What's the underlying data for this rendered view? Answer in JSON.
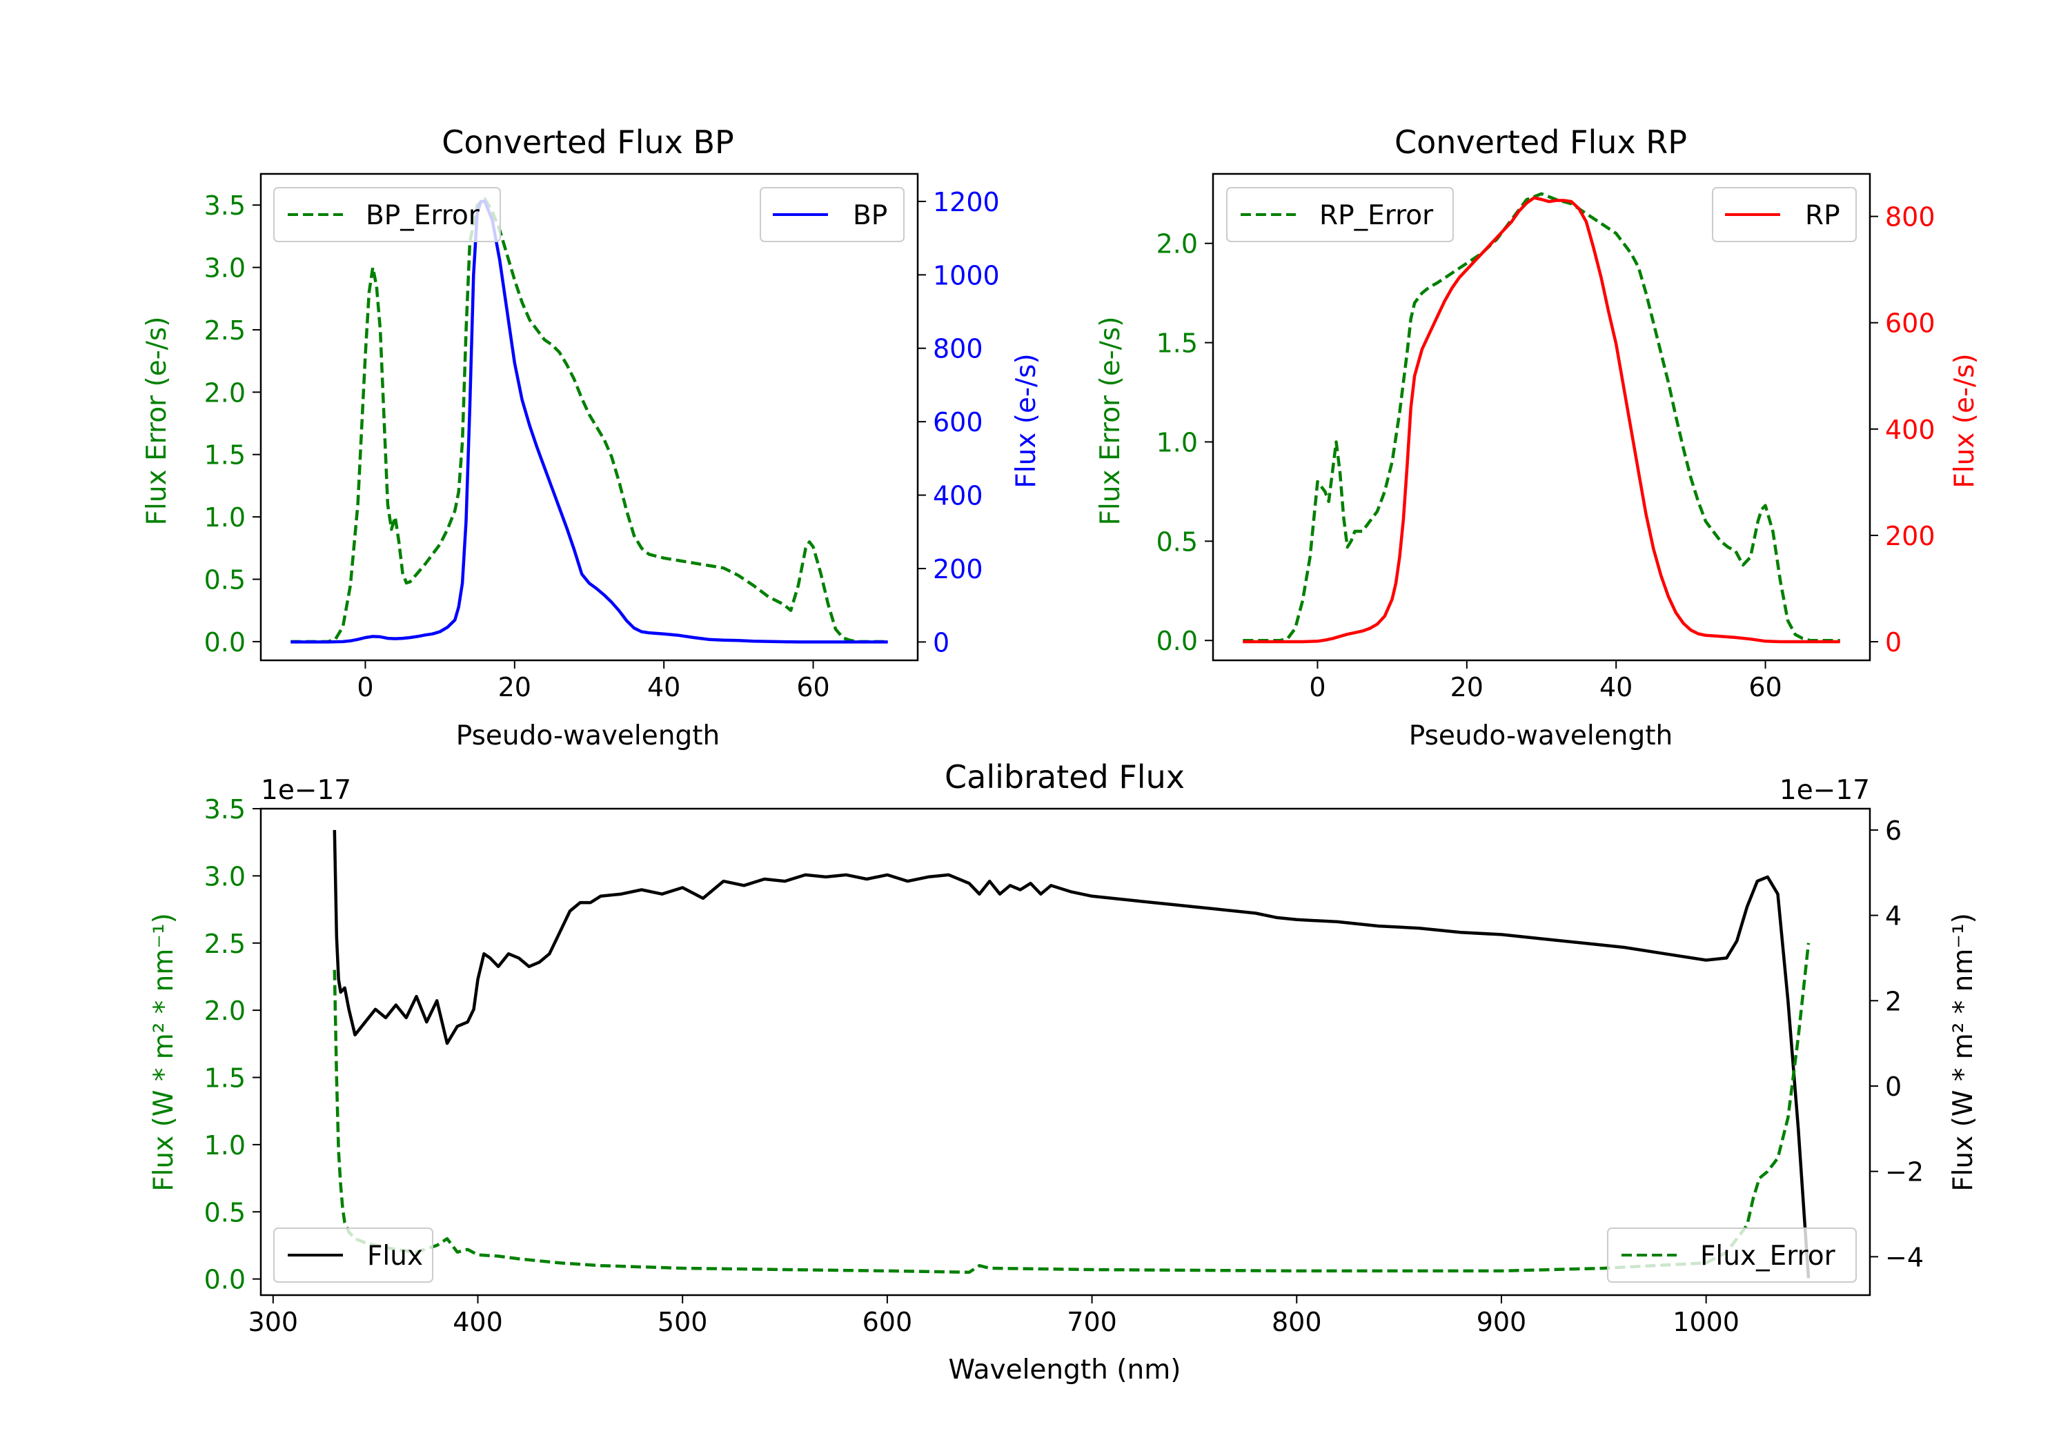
{
  "colors": {
    "bp": "#0000ff",
    "rp": "#ff0000",
    "error": "#008000",
    "flux": "#000000",
    "axis": "#000000"
  },
  "chart_data": [
    {
      "id": "bp",
      "type": "line",
      "title": "Converted Flux BP",
      "xlabel": "Pseudo-wavelength",
      "ylabel_left": "Flux Error (e-/s)",
      "ylabel_right": "Flux (e-/s)",
      "xlim": [
        -14,
        74
      ],
      "xticks": [
        0,
        20,
        40,
        60
      ],
      "ylim_left": [
        -0.15,
        3.75
      ],
      "yticks_left": [
        "0.0",
        "0.5",
        "1.0",
        "1.5",
        "2.0",
        "2.5",
        "3.0",
        "3.5"
      ],
      "ylim_right": [
        -50,
        1275
      ],
      "yticks_right": [
        "0",
        "200",
        "400",
        "600",
        "800",
        "1000",
        "1200"
      ],
      "legend_left": {
        "label": "BP_Error",
        "position": "upper left"
      },
      "legend_right": {
        "label": "BP",
        "position": "upper right"
      },
      "series": [
        {
          "name": "BP_Error",
          "axis": "left",
          "style": "dashed",
          "color": "#008000",
          "x": [
            -10,
            -5,
            -4,
            -3,
            -2,
            -1,
            0,
            0.5,
            1,
            1.5,
            2,
            2.5,
            3,
            3.5,
            4,
            4.5,
            5,
            5.5,
            6,
            7,
            8,
            9,
            10,
            11,
            12,
            12.5,
            13,
            13.5,
            14,
            15,
            16,
            17,
            18,
            19,
            20,
            21,
            22,
            23,
            24,
            25,
            26,
            27,
            28,
            29,
            30,
            31,
            32,
            33,
            34,
            35,
            36,
            37,
            38,
            40,
            42,
            44,
            46,
            48,
            50,
            52,
            54,
            56,
            57,
            58,
            59,
            59.5,
            60,
            61,
            62,
            63,
            64,
            65,
            66,
            68,
            70
          ],
          "y": [
            0,
            0,
            0.02,
            0.12,
            0.45,
            1.1,
            2.3,
            2.8,
            3.0,
            2.85,
            2.5,
            1.8,
            1.1,
            0.9,
            1.0,
            0.8,
            0.55,
            0.47,
            0.48,
            0.55,
            0.62,
            0.7,
            0.78,
            0.9,
            1.05,
            1.2,
            1.6,
            2.5,
            3.2,
            3.5,
            3.55,
            3.45,
            3.3,
            3.1,
            2.9,
            2.72,
            2.58,
            2.5,
            2.42,
            2.38,
            2.32,
            2.22,
            2.1,
            1.95,
            1.82,
            1.72,
            1.62,
            1.48,
            1.28,
            1.05,
            0.85,
            0.75,
            0.7,
            0.67,
            0.65,
            0.63,
            0.61,
            0.59,
            0.53,
            0.45,
            0.36,
            0.3,
            0.25,
            0.45,
            0.75,
            0.8,
            0.76,
            0.55,
            0.3,
            0.1,
            0.03,
            0.01,
            0,
            0,
            0
          ]
        },
        {
          "name": "BP",
          "axis": "right",
          "style": "solid",
          "color": "#0000ff",
          "x": [
            -10,
            -5,
            -3,
            -2,
            -1,
            0,
            1,
            2,
            3,
            4,
            5,
            6,
            7,
            8,
            9,
            10,
            11,
            12,
            12.5,
            13,
            13.5,
            14,
            14.5,
            15,
            15.5,
            16,
            16.5,
            17,
            18,
            19,
            20,
            21,
            22,
            23,
            24,
            25,
            26,
            27,
            28,
            29,
            30,
            31,
            32,
            33,
            34,
            35,
            36,
            37,
            38,
            40,
            42,
            44,
            46,
            48,
            50,
            52,
            55,
            58,
            60,
            62,
            65,
            70
          ],
          "y": [
            0,
            0,
            1,
            3,
            7,
            12,
            15,
            14,
            10,
            9,
            10,
            12,
            15,
            19,
            22,
            28,
            40,
            60,
            95,
            160,
            330,
            640,
            1000,
            1170,
            1200,
            1200,
            1175,
            1150,
            1040,
            900,
            760,
            660,
            590,
            530,
            475,
            420,
            365,
            310,
            250,
            185,
            160,
            145,
            128,
            108,
            85,
            58,
            38,
            28,
            25,
            22,
            18,
            12,
            7,
            5,
            4,
            2,
            1,
            0,
            0,
            0,
            0,
            0
          ]
        }
      ]
    },
    {
      "id": "rp",
      "type": "line",
      "title": "Converted Flux RP",
      "xlabel": "Pseudo-wavelength",
      "ylabel_left": "Flux Error (e-/s)",
      "ylabel_right": "Flux (e-/s)",
      "xlim": [
        -14,
        74
      ],
      "xticks": [
        0,
        20,
        40,
        60
      ],
      "ylim_left": [
        -0.1,
        2.35
      ],
      "yticks_left": [
        "0.0",
        "0.5",
        "1.0",
        "1.5",
        "2.0"
      ],
      "ylim_right": [
        -35,
        880
      ],
      "yticks_right": [
        "0",
        "200",
        "400",
        "600",
        "800"
      ],
      "legend_left": {
        "label": "RP_Error",
        "position": "upper left"
      },
      "legend_right": {
        "label": "RP",
        "position": "upper right"
      },
      "series": [
        {
          "name": "RP_Error",
          "axis": "left",
          "style": "dashed",
          "color": "#008000",
          "x": [
            -10,
            -5,
            -4,
            -3,
            -2,
            -1,
            0,
            1,
            1.5,
            2,
            2.5,
            3,
            3.5,
            4,
            4.5,
            5,
            6,
            7,
            8,
            9,
            10,
            11,
            12,
            12.5,
            13,
            14,
            15,
            16,
            18,
            20,
            22,
            24,
            26,
            28,
            30,
            32,
            34,
            36,
            38,
            40,
            42,
            43,
            44,
            45,
            46,
            47,
            48,
            49,
            50,
            51,
            52,
            53,
            54,
            55,
            56,
            57,
            58,
            59,
            59.5,
            60,
            61,
            62,
            63,
            64,
            65,
            66,
            68,
            70
          ],
          "y": [
            0,
            0,
            0.01,
            0.06,
            0.2,
            0.42,
            0.8,
            0.75,
            0.7,
            0.85,
            1.0,
            0.85,
            0.62,
            0.47,
            0.5,
            0.55,
            0.55,
            0.6,
            0.65,
            0.75,
            0.9,
            1.15,
            1.45,
            1.62,
            1.7,
            1.75,
            1.78,
            1.8,
            1.85,
            1.9,
            1.95,
            2.02,
            2.12,
            2.22,
            2.25,
            2.22,
            2.2,
            2.15,
            2.1,
            2.05,
            1.95,
            1.88,
            1.75,
            1.6,
            1.45,
            1.3,
            1.13,
            0.97,
            0.82,
            0.7,
            0.6,
            0.55,
            0.5,
            0.47,
            0.45,
            0.38,
            0.42,
            0.6,
            0.66,
            0.68,
            0.55,
            0.3,
            0.1,
            0.03,
            0.01,
            0,
            0,
            0
          ]
        },
        {
          "name": "RP",
          "axis": "right",
          "style": "solid",
          "color": "#ff0000",
          "x": [
            -10,
            -5,
            -2,
            0,
            1,
            2,
            3,
            4,
            5,
            6,
            7,
            8,
            9,
            10,
            10.5,
            11,
            11.5,
            12,
            12.5,
            13,
            14,
            15,
            16,
            17,
            18,
            19,
            20,
            21,
            22,
            23,
            24,
            25,
            26,
            27,
            28,
            29,
            30,
            31,
            32,
            33,
            34,
            35,
            36,
            37,
            38,
            39,
            40,
            41,
            42,
            43,
            44,
            45,
            46,
            47,
            48,
            49,
            50,
            51,
            52,
            54,
            56,
            58,
            60,
            62,
            65,
            70
          ],
          "y": [
            0,
            0,
            0,
            1,
            3,
            6,
            10,
            14,
            17,
            20,
            25,
            33,
            48,
            80,
            110,
            160,
            230,
            330,
            440,
            500,
            550,
            580,
            610,
            640,
            665,
            685,
            700,
            715,
            730,
            745,
            760,
            775,
            790,
            810,
            825,
            835,
            832,
            828,
            830,
            830,
            828,
            815,
            790,
            740,
            685,
            620,
            560,
            480,
            400,
            320,
            240,
            175,
            125,
            85,
            55,
            35,
            22,
            15,
            12,
            10,
            8,
            5,
            1,
            0,
            0,
            0
          ]
        }
      ]
    },
    {
      "id": "cal",
      "type": "line",
      "title": "Calibrated Flux",
      "xlabel": "Wavelength (nm)",
      "ylabel_left": "Flux (W * m² * nm⁻¹)",
      "ylabel_right": "Flux (W * m² * nm⁻¹)",
      "offset_left": "1e−17",
      "offset_right": "1e−17",
      "xlim": [
        294,
        1080
      ],
      "xticks": [
        300,
        400,
        500,
        600,
        700,
        800,
        900,
        1000
      ],
      "ylim_left": [
        -0.12,
        3.5
      ],
      "yticks_left": [
        "0.0",
        "0.5",
        "1.0",
        "1.5",
        "2.0",
        "2.5",
        "3.0",
        "3.5"
      ],
      "ylim_right": [
        -4.9,
        6.5
      ],
      "yticks_right": [
        "−4",
        "−2",
        "0",
        "2",
        "4",
        "6"
      ],
      "legend_left": {
        "label": "Flux",
        "position": "lower left"
      },
      "legend_right": {
        "label": "Flux_Error",
        "position": "lower right"
      },
      "series": [
        {
          "name": "Flux",
          "axis": "right",
          "style": "solid",
          "color": "#000000",
          "x": [
            330,
            331,
            332,
            333,
            335,
            337,
            340,
            345,
            350,
            355,
            360,
            365,
            370,
            375,
            380,
            385,
            390,
            395,
            398,
            400,
            403,
            406,
            410,
            415,
            420,
            425,
            430,
            435,
            440,
            445,
            450,
            455,
            460,
            470,
            480,
            490,
            500,
            510,
            520,
            530,
            540,
            550,
            560,
            570,
            580,
            590,
            600,
            610,
            620,
            630,
            640,
            645,
            650,
            655,
            660,
            665,
            670,
            675,
            680,
            690,
            700,
            710,
            720,
            730,
            740,
            750,
            760,
            770,
            780,
            790,
            800,
            820,
            840,
            860,
            880,
            900,
            920,
            940,
            960,
            980,
            1000,
            1010,
            1015,
            1020,
            1025,
            1030,
            1035,
            1040,
            1045,
            1050
          ],
          "y": [
            6,
            3.5,
            2.5,
            2.2,
            2.3,
            1.8,
            1.2,
            1.5,
            1.8,
            1.6,
            1.9,
            1.6,
            2.1,
            1.5,
            2.0,
            1.0,
            1.4,
            1.5,
            1.8,
            2.5,
            3.1,
            3.0,
            2.8,
            3.1,
            3.0,
            2.8,
            2.9,
            3.1,
            3.6,
            4.1,
            4.3,
            4.3,
            4.45,
            4.5,
            4.6,
            4.5,
            4.65,
            4.4,
            4.8,
            4.7,
            4.85,
            4.8,
            4.95,
            4.9,
            4.95,
            4.85,
            4.95,
            4.8,
            4.9,
            4.95,
            4.75,
            4.5,
            4.8,
            4.5,
            4.7,
            4.6,
            4.75,
            4.5,
            4.7,
            4.55,
            4.45,
            4.4,
            4.35,
            4.3,
            4.25,
            4.2,
            4.15,
            4.1,
            4.05,
            3.95,
            3.9,
            3.85,
            3.75,
            3.7,
            3.6,
            3.55,
            3.45,
            3.35,
            3.25,
            3.1,
            2.95,
            3.0,
            3.4,
            4.2,
            4.8,
            4.9,
            4.5,
            2.0,
            -1.0,
            -4.5
          ]
        },
        {
          "name": "Flux_Error",
          "axis": "left",
          "style": "dashed",
          "color": "#008000",
          "x": [
            330,
            331,
            332,
            333,
            334,
            335,
            337,
            340,
            345,
            350,
            360,
            370,
            380,
            385,
            390,
            395,
            400,
            410,
            420,
            440,
            460,
            480,
            500,
            550,
            600,
            640,
            645,
            650,
            700,
            800,
            900,
            950,
            1000,
            1010,
            1015,
            1020,
            1023,
            1026,
            1030,
            1035,
            1040,
            1045,
            1050
          ],
          "y": [
            2.3,
            1.5,
            0.95,
            0.7,
            0.52,
            0.42,
            0.35,
            0.3,
            0.27,
            0.25,
            0.22,
            0.2,
            0.25,
            0.3,
            0.2,
            0.22,
            0.18,
            0.17,
            0.15,
            0.12,
            0.1,
            0.09,
            0.08,
            0.07,
            0.06,
            0.05,
            0.1,
            0.08,
            0.07,
            0.06,
            0.06,
            0.08,
            0.12,
            0.2,
            0.3,
            0.4,
            0.6,
            0.75,
            0.8,
            0.9,
            1.2,
            1.8,
            2.5
          ]
        }
      ]
    }
  ]
}
